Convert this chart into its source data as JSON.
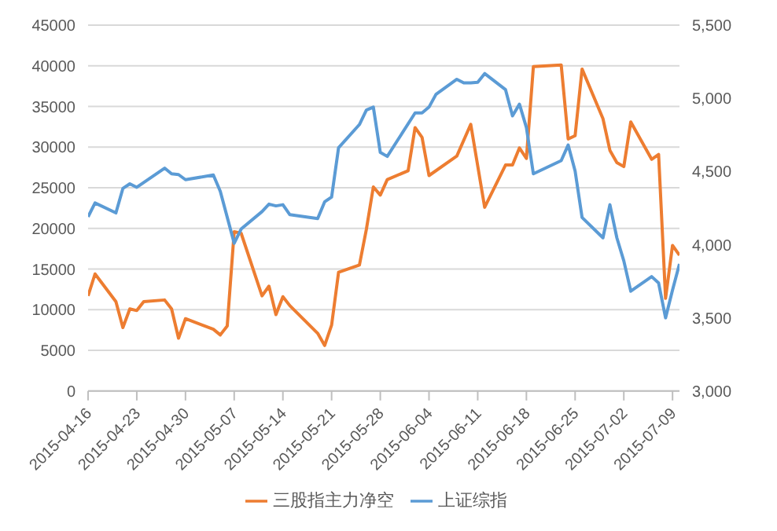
{
  "chart_data": {
    "type": "line",
    "xlim": [
      "2015-04-16",
      "2015-07-10"
    ],
    "xticks": [
      "2015-04-16",
      "2015-04-23",
      "2015-04-30",
      "2015-05-07",
      "2015-05-14",
      "2015-05-21",
      "2015-05-28",
      "2015-06-04",
      "2015-06-11",
      "2015-06-18",
      "2015-06-25",
      "2015-07-02",
      "2015-07-09"
    ],
    "ylim": [
      0,
      45000
    ],
    "yticks": [
      0,
      5000,
      10000,
      15000,
      20000,
      25000,
      30000,
      35000,
      40000,
      45000
    ],
    "y2lim": [
      3000,
      5500
    ],
    "y2ticks": [
      {
        "value": 3000,
        "label": "3,000"
      },
      {
        "value": 3500,
        "label": "3,500"
      },
      {
        "value": 4000,
        "label": "4,000"
      },
      {
        "value": 4500,
        "label": "4,500"
      },
      {
        "value": 5000,
        "label": "5,000"
      },
      {
        "value": 5500,
        "label": "5,500"
      }
    ],
    "grid": "y",
    "legend": "bottom",
    "marker": "none",
    "line_style": "solid",
    "series": [
      {
        "name": "三股指主力净空",
        "color": "#ed7d31",
        "x": [
          "2015-04-16",
          "2015-04-17",
          "2015-04-20",
          "2015-04-21",
          "2015-04-22",
          "2015-04-23",
          "2015-04-24",
          "2015-04-27",
          "2015-04-28",
          "2015-04-29",
          "2015-04-30",
          "2015-05-04",
          "2015-05-05",
          "2015-05-06",
          "2015-05-07",
          "2015-05-08",
          "2015-05-11",
          "2015-05-12",
          "2015-05-13",
          "2015-05-14",
          "2015-05-15",
          "2015-05-19",
          "2015-05-20",
          "2015-05-21",
          "2015-05-22",
          "2015-05-25",
          "2015-05-26",
          "2015-05-27",
          "2015-05-28",
          "2015-05-29",
          "2015-06-01",
          "2015-06-02",
          "2015-06-03",
          "2015-06-04",
          "2015-06-08",
          "2015-06-10",
          "2015-06-12",
          "2015-06-15",
          "2015-06-16",
          "2015-06-17",
          "2015-06-18",
          "2015-06-19",
          "2015-06-23",
          "2015-06-24",
          "2015-06-25",
          "2015-06-26",
          "2015-06-29",
          "2015-06-30",
          "2015-07-01",
          "2015-07-02",
          "2015-07-03",
          "2015-07-06",
          "2015-07-07",
          "2015-07-08",
          "2015-07-09",
          "2015-07-10"
        ],
        "values": [
          11700,
          14400,
          11000,
          7800,
          10100,
          9900,
          11000,
          11200,
          10100,
          6500,
          8900,
          7600,
          6900,
          8000,
          19600,
          19400,
          11700,
          12900,
          9400,
          11600,
          10500,
          7100,
          5600,
          8100,
          14600,
          15500,
          19900,
          25100,
          24100,
          26000,
          27100,
          32400,
          31200,
          26500,
          28900,
          32800,
          22600,
          27800,
          27800,
          29900,
          28600,
          39900,
          40100,
          31000,
          31400,
          39600,
          33500,
          29600,
          28100,
          27600,
          33100,
          28500,
          29100,
          11400,
          17900,
          16700
        ]
      },
      {
        "name": "上证综指",
        "color": "#5b9bd5",
        "axis": "y2",
        "x": [
          "2015-04-16",
          "2015-04-17",
          "2015-04-20",
          "2015-04-21",
          "2015-04-22",
          "2015-04-23",
          "2015-04-27",
          "2015-04-28",
          "2015-04-29",
          "2015-04-30",
          "2015-05-04",
          "2015-05-05",
          "2015-05-07",
          "2015-05-08",
          "2015-05-11",
          "2015-05-12",
          "2015-05-13",
          "2015-05-14",
          "2015-05-15",
          "2015-05-19",
          "2015-05-20",
          "2015-05-21",
          "2015-05-22",
          "2015-05-25",
          "2015-05-26",
          "2015-05-27",
          "2015-05-28",
          "2015-05-29",
          "2015-06-02",
          "2015-06-03",
          "2015-06-04",
          "2015-06-05",
          "2015-06-08",
          "2015-06-09",
          "2015-06-10",
          "2015-06-11",
          "2015-06-12",
          "2015-06-15",
          "2015-06-16",
          "2015-06-17",
          "2015-06-18",
          "2015-06-19",
          "2015-06-23",
          "2015-06-24",
          "2015-06-25",
          "2015-06-26",
          "2015-06-29",
          "2015-06-30",
          "2015-07-01",
          "2015-07-02",
          "2015-07-03",
          "2015-07-06",
          "2015-07-07",
          "2015-07-08",
          "2015-07-09",
          "2015-07-10"
        ],
        "values": [
          4190,
          4285,
          4217,
          4384,
          4416,
          4392,
          4523,
          4484,
          4479,
          4444,
          4476,
          4365,
          4010,
          4107,
          4226,
          4277,
          4265,
          4273,
          4205,
          4178,
          4293,
          4325,
          4662,
          4821,
          4920,
          4940,
          4630,
          4603,
          4900,
          4900,
          4940,
          5027,
          5130,
          5106,
          5106,
          5110,
          5169,
          5059,
          4880,
          4960,
          4800,
          4484,
          4574,
          4681,
          4503,
          4186,
          4047,
          4273,
          4047,
          3889,
          3682,
          3782,
          3738,
          3500,
          3690,
          3869
        ]
      }
    ]
  }
}
